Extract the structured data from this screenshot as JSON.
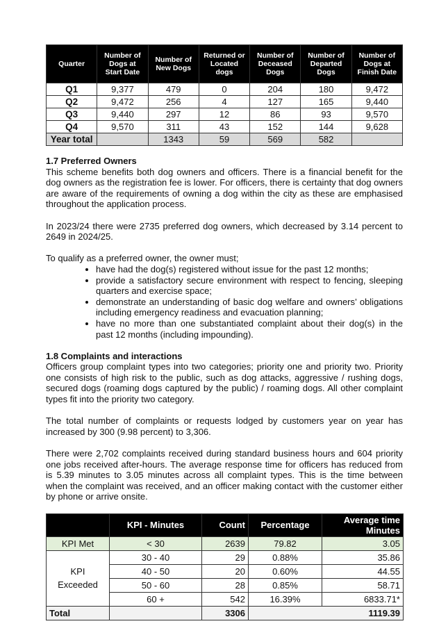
{
  "dog_table": {
    "headers": [
      "Quarter",
      "Number of Dogs at Start Date",
      "Number of New Dogs",
      "Returned or Located dogs",
      "Number of Deceased Dogs",
      "Number of Departed Dogs",
      "Number of Dogs at Finish Date"
    ],
    "rows": [
      [
        "Q1",
        "9,377",
        "479",
        "0",
        "204",
        "180",
        "9,472"
      ],
      [
        "Q2",
        "9,472",
        "256",
        "4",
        "127",
        "165",
        "9,440"
      ],
      [
        "Q3",
        "9,440",
        "297",
        "12",
        "86",
        "93",
        "9,570"
      ],
      [
        "Q4",
        "9,570",
        "311",
        "43",
        "152",
        "144",
        "9,628"
      ]
    ],
    "total": [
      "Year total",
      "",
      "1343",
      "59",
      "569",
      "582",
      ""
    ]
  },
  "preferred": {
    "heading": "1.7 Preferred Owners",
    "p1": "This scheme benefits both dog owners and officers. There is a financial benefit for the dog owners as the registration fee is lower. For officers, there is certainty that dog owners are aware of the requirements of owning a dog within the city as these are emphasised throughout the application process.",
    "p2": "In 2023/24 there were 2735 preferred dog owners, which decreased by 3.14 percent to 2649 in 2024/25.",
    "p3": "To qualify as a preferred owner, the owner must;",
    "bullets": [
      "have had the dog(s) registered without issue for the past 12 months;",
      "provide a satisfactory secure environment with respect to fencing, sleeping quarters and exercise space;",
      "demonstrate an understanding of basic dog welfare and owners’ obligations including emergency readiness and evacuation planning;",
      "have no more than one substantiated complaint about their dog(s) in the past 12 months (including impounding)."
    ]
  },
  "complaints": {
    "heading": "1.8 Complaints and interactions",
    "p1": "Officers group complaint types into two categories; priority one and priority two. Priority one consists of high risk to the public, such as dog attacks, aggressive / rushing dogs, secured dogs (roaming dogs captured by the public) / roaming dogs. All other complaint types fit into the priority two category.",
    "p2": "The total number of complaints or requests lodged by customers year on year has increased by 300 (9.98 percent) to 3,306.",
    "p3": "There were 2,702 complaints received during standard business hours and 604 priority one jobs received after-hours. The average response time for officers has reduced from is 5.39 minutes to 3.05 minutes across all complaint types. This is the time between when the complaint was received, and an officer making contact with the customer either by phone or arrive onsite."
  },
  "kpi_table": {
    "headers": [
      "",
      "KPI - Minutes",
      "Count",
      "Percentage",
      "Average time Minutes"
    ],
    "met": {
      "label": "KPI Met",
      "range": "< 30",
      "count": "2639",
      "pct": "79.82",
      "avg": "3.05"
    },
    "exceeded_label": "KPI Exceeded",
    "exceeded": [
      {
        "range": "30 - 40",
        "count": "29",
        "pct": "0.88%",
        "avg": "35.86"
      },
      {
        "range": "40 - 50",
        "count": "20",
        "pct": "0.60%",
        "avg": "44.55"
      },
      {
        "range": "50 - 60",
        "count": "28",
        "pct": "0.85%",
        "avg": "58.71"
      },
      {
        "range": "60 +",
        "count": "542",
        "pct": "16.39%",
        "avg": "6833.71*"
      }
    ],
    "total": {
      "label": "Total",
      "count": "3306",
      "avg": "1119.39"
    },
    "met_color": "#e2efd9"
  }
}
